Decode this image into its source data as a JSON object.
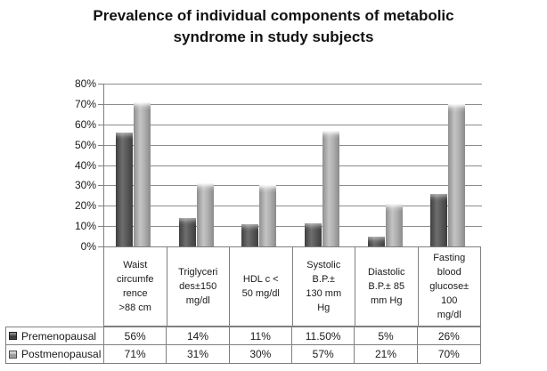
{
  "chart_data": {
    "type": "bar",
    "title": "Prevalence of individual components of metabolic\nsyndrome in study subjects",
    "xlabel": "",
    "ylabel": "",
    "ylim": [
      0,
      80
    ],
    "grid": true,
    "legend_position": "table-left",
    "ytick_labels": [
      "0%",
      "10%",
      "20%",
      "30%",
      "40%",
      "50%",
      "60%",
      "70%",
      "80%"
    ],
    "categories": [
      "Waist circumference >88 cm",
      "Triglycerides±150 mg/dl",
      "HDL c < 50 mg/dl",
      "Systolic B.P.± 130 mm Hg",
      "Diastolic B.P.± 85 mm Hg",
      "Fasting blood glucose± 100 mg/dl"
    ],
    "categories_wrapped": [
      "Waist\ncircumfe\nrence\n>88 cm",
      "Triglyceri\ndes±150\nmg/dl",
      "HDL c <\n50 mg/dl",
      "Systolic\nB.P.±\n130 mm\nHg",
      "Diastolic\nB.P.± 85\nmm Hg",
      "Fasting\nblood\nglucose±\n100\nmg/dl"
    ],
    "series": [
      {
        "name": "Premenopausal",
        "values": [
          56,
          14,
          11,
          11.5,
          5,
          26
        ],
        "labels": [
          "56%",
          "14%",
          "11%",
          "11.50%",
          "5%",
          "26%"
        ],
        "color": "#5c5c5c"
      },
      {
        "name": "Postmenopausal",
        "values": [
          71,
          31,
          30,
          57,
          21,
          70
        ],
        "labels": [
          "71%",
          "31%",
          "30%",
          "57%",
          "21%",
          "70%"
        ],
        "color": "#b2b2b2"
      }
    ],
    "colors": {
      "gridline": "#8c8c8c",
      "border": "#7f7f7f",
      "text": "#1a1a1a",
      "background": "#ffffff"
    }
  }
}
